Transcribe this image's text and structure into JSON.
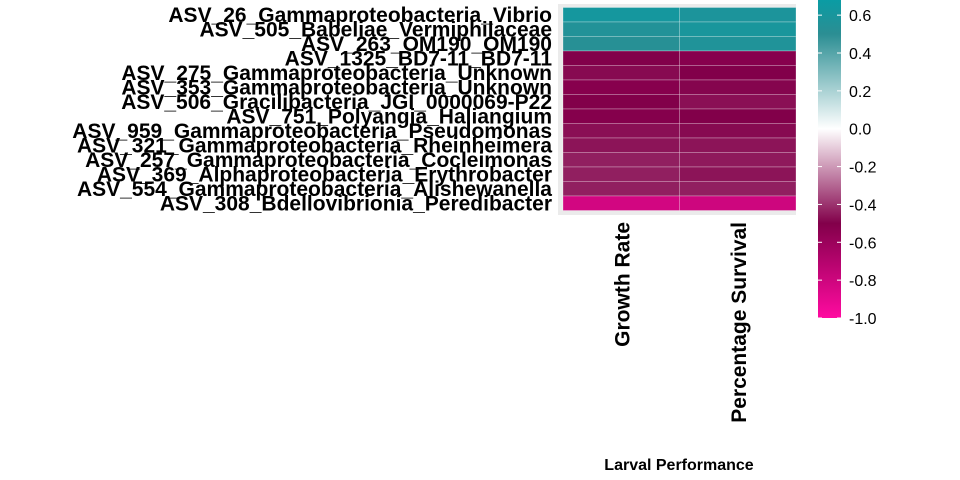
{
  "chart_data": {
    "type": "heatmap",
    "title": "",
    "xlabel": "Larval Performance",
    "ylabel": "",
    "x_categories": [
      "Growth Rate",
      "Percentage Survival"
    ],
    "y_categories": [
      "ASV_26_Gammaproteobacteria_Vibrio",
      "ASV_505_Babeliae_Vermiphilaceae",
      "ASV_263_OM190_OM190",
      "ASV_1325_BD7-11_BD7-11",
      "ASV_275_Gammaproteobacteria_Unknown",
      "ASV_353_Gammaproteobacteria_Unknown",
      "ASV_506_Gracilibacteria_JGI_0000069-P22",
      "ASV_751_Polyangia_Haliangium",
      "ASV_959_Gammaproteobacteria_Pseudomonas",
      "ASV_321_Gammaproteobacteria_Rheinheimera",
      "ASV_257_Gammaproteobacteria_Cocleimonas",
      "ASV_369_Alphaproteobacteria_Erythrobacter",
      "ASV_554_Gammaproteobacteria_Alishewanella",
      "ASV_308_Bdellovibrionia_Peredibacter"
    ],
    "values": [
      [
        0.62,
        0.58
      ],
      [
        0.55,
        0.6
      ],
      [
        0.52,
        0.56
      ],
      [
        -0.5,
        -0.52
      ],
      [
        -0.48,
        -0.5
      ],
      [
        -0.52,
        -0.49
      ],
      [
        -0.5,
        -0.47
      ],
      [
        -0.51,
        -0.5
      ],
      [
        -0.47,
        -0.48
      ],
      [
        -0.46,
        -0.46
      ],
      [
        -0.44,
        -0.45
      ],
      [
        -0.44,
        -0.46
      ],
      [
        -0.44,
        -0.44
      ],
      [
        -0.82,
        -0.8
      ]
    ],
    "legend": {
      "placement": "right",
      "ticks": [
        "0.6",
        "0.4",
        "0.2",
        "0.0",
        "-0.2",
        "-0.4",
        "-0.6",
        "-0.8",
        "-1.0"
      ],
      "tick_values": [
        0.6,
        0.4,
        0.2,
        0.0,
        -0.2,
        -0.4,
        -0.6,
        -0.8,
        -1.0
      ],
      "range": [
        -1.0,
        0.68
      ],
      "color_stops": [
        {
          "value": -1.0,
          "color": "#ff0aa0"
        },
        {
          "value": -0.5,
          "color": "#82004a"
        },
        {
          "value": 0.0,
          "color": "#ffffff"
        },
        {
          "value": 0.5,
          "color": "#2b8e93"
        },
        {
          "value": 0.68,
          "color": "#0a9ca4"
        }
      ]
    },
    "panel_background": "#ebebeb",
    "grid": true
  }
}
